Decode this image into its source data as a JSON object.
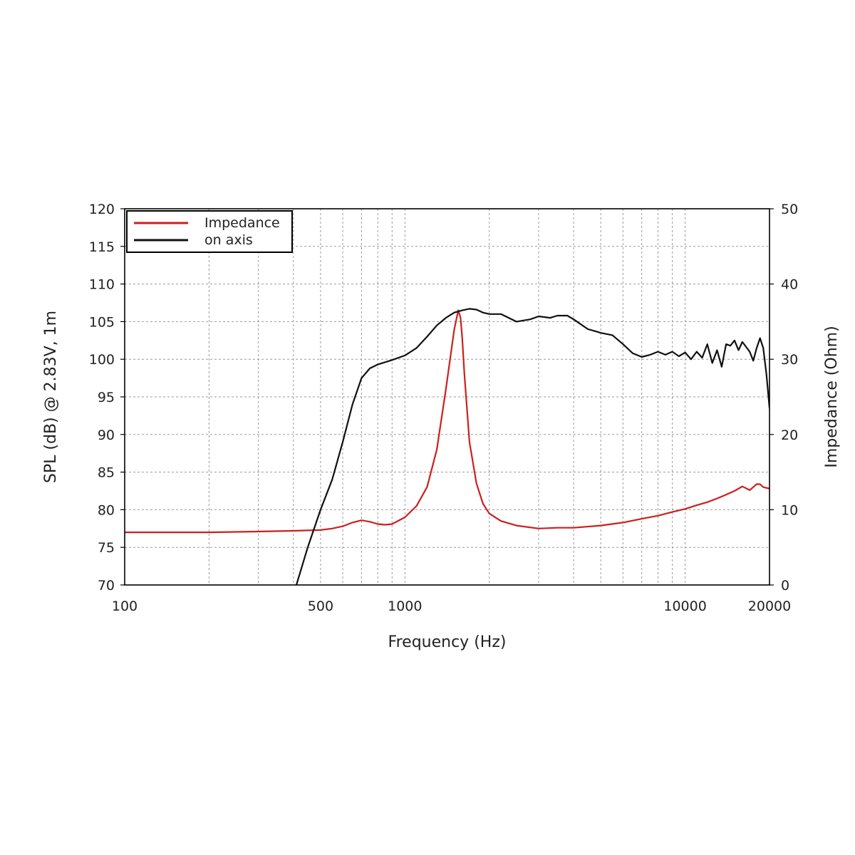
{
  "chart_data": {
    "type": "line",
    "xlabel": "Frequency (Hz)",
    "ylabel": "SPL (dB) @ 2.83V, 1m",
    "y2label": "Impedance (Ohm)",
    "x_scale": "log",
    "xlim": [
      100,
      20000
    ],
    "ylim": [
      70,
      120
    ],
    "y2lim": [
      0,
      50
    ],
    "grid": true,
    "legend_position": "top-left",
    "x_ticks": [
      100,
      500,
      1000,
      10000,
      20000
    ],
    "x_tick_labels": [
      "100",
      "500",
      "1000",
      "10000",
      "20000"
    ],
    "y_ticks": [
      70,
      75,
      80,
      85,
      90,
      95,
      100,
      105,
      110,
      115,
      120
    ],
    "y_tick_labels": [
      "70",
      "75",
      "80",
      "85",
      "90",
      "95",
      "100",
      "105",
      "110",
      "115",
      "120"
    ],
    "y2_ticks": [
      0,
      10,
      20,
      30,
      40,
      50
    ],
    "y2_tick_labels": [
      "0",
      "10",
      "20",
      "30",
      "40",
      "50"
    ],
    "series": [
      {
        "name": "Impedance",
        "color": "#cc1f1f",
        "axis": "right",
        "x": [
          100,
          200,
          300,
          400,
          500,
          550,
          600,
          650,
          700,
          750,
          800,
          850,
          900,
          1000,
          1100,
          1200,
          1300,
          1400,
          1500,
          1550,
          1580,
          1600,
          1630,
          1700,
          1800,
          1900,
          2000,
          2200,
          2500,
          3000,
          3500,
          4000,
          5000,
          6000,
          7000,
          8000,
          9000,
          10000,
          11000,
          12000,
          13000,
          14000,
          15000,
          16000,
          17000,
          17500,
          18000,
          18500,
          19000,
          20000
        ],
        "y": [
          7.0,
          7.0,
          7.1,
          7.2,
          7.3,
          7.5,
          7.8,
          8.3,
          8.6,
          8.4,
          8.1,
          8.0,
          8.1,
          9.0,
          10.5,
          13.0,
          18.0,
          26.0,
          34.0,
          36.5,
          35.5,
          33.0,
          28.0,
          19.0,
          13.5,
          10.8,
          9.5,
          8.5,
          7.9,
          7.5,
          7.6,
          7.6,
          7.9,
          8.3,
          8.8,
          9.2,
          9.7,
          10.1,
          10.6,
          11.0,
          11.5,
          12.0,
          12.5,
          13.1,
          12.6,
          13.0,
          13.4,
          13.4,
          13.0,
          12.8
        ]
      },
      {
        "name": "on axis",
        "color": "#111111",
        "axis": "left",
        "x": [
          410,
          450,
          500,
          550,
          600,
          650,
          700,
          750,
          800,
          900,
          1000,
          1100,
          1200,
          1300,
          1400,
          1500,
          1600,
          1700,
          1800,
          1900,
          2000,
          2200,
          2500,
          2800,
          3000,
          3300,
          3500,
          3800,
          4000,
          4300,
          4500,
          4800,
          5000,
          5500,
          6000,
          6500,
          7000,
          7500,
          8000,
          8500,
          9000,
          9500,
          10000,
          10500,
          11000,
          11500,
          12000,
          12500,
          13000,
          13500,
          14000,
          14500,
          15000,
          15500,
          16000,
          17000,
          17500,
          18000,
          18500,
          19000,
          19500,
          20000
        ],
        "y": [
          70.0,
          75.0,
          80.0,
          84.0,
          89.0,
          94.0,
          97.5,
          98.8,
          99.3,
          99.9,
          100.5,
          101.5,
          103.0,
          104.5,
          105.5,
          106.2,
          106.5,
          106.7,
          106.6,
          106.2,
          106.0,
          106.0,
          105.0,
          105.3,
          105.7,
          105.5,
          105.8,
          105.8,
          105.3,
          104.5,
          104.0,
          103.7,
          103.5,
          103.2,
          102.0,
          100.8,
          100.3,
          100.6,
          101.0,
          100.6,
          101.0,
          100.4,
          100.9,
          100.0,
          101.0,
          100.2,
          102.0,
          99.5,
          101.2,
          99.0,
          102.0,
          101.8,
          102.5,
          101.2,
          102.3,
          101.0,
          99.8,
          101.5,
          102.8,
          101.5,
          98.0,
          93.5
        ]
      }
    ]
  }
}
